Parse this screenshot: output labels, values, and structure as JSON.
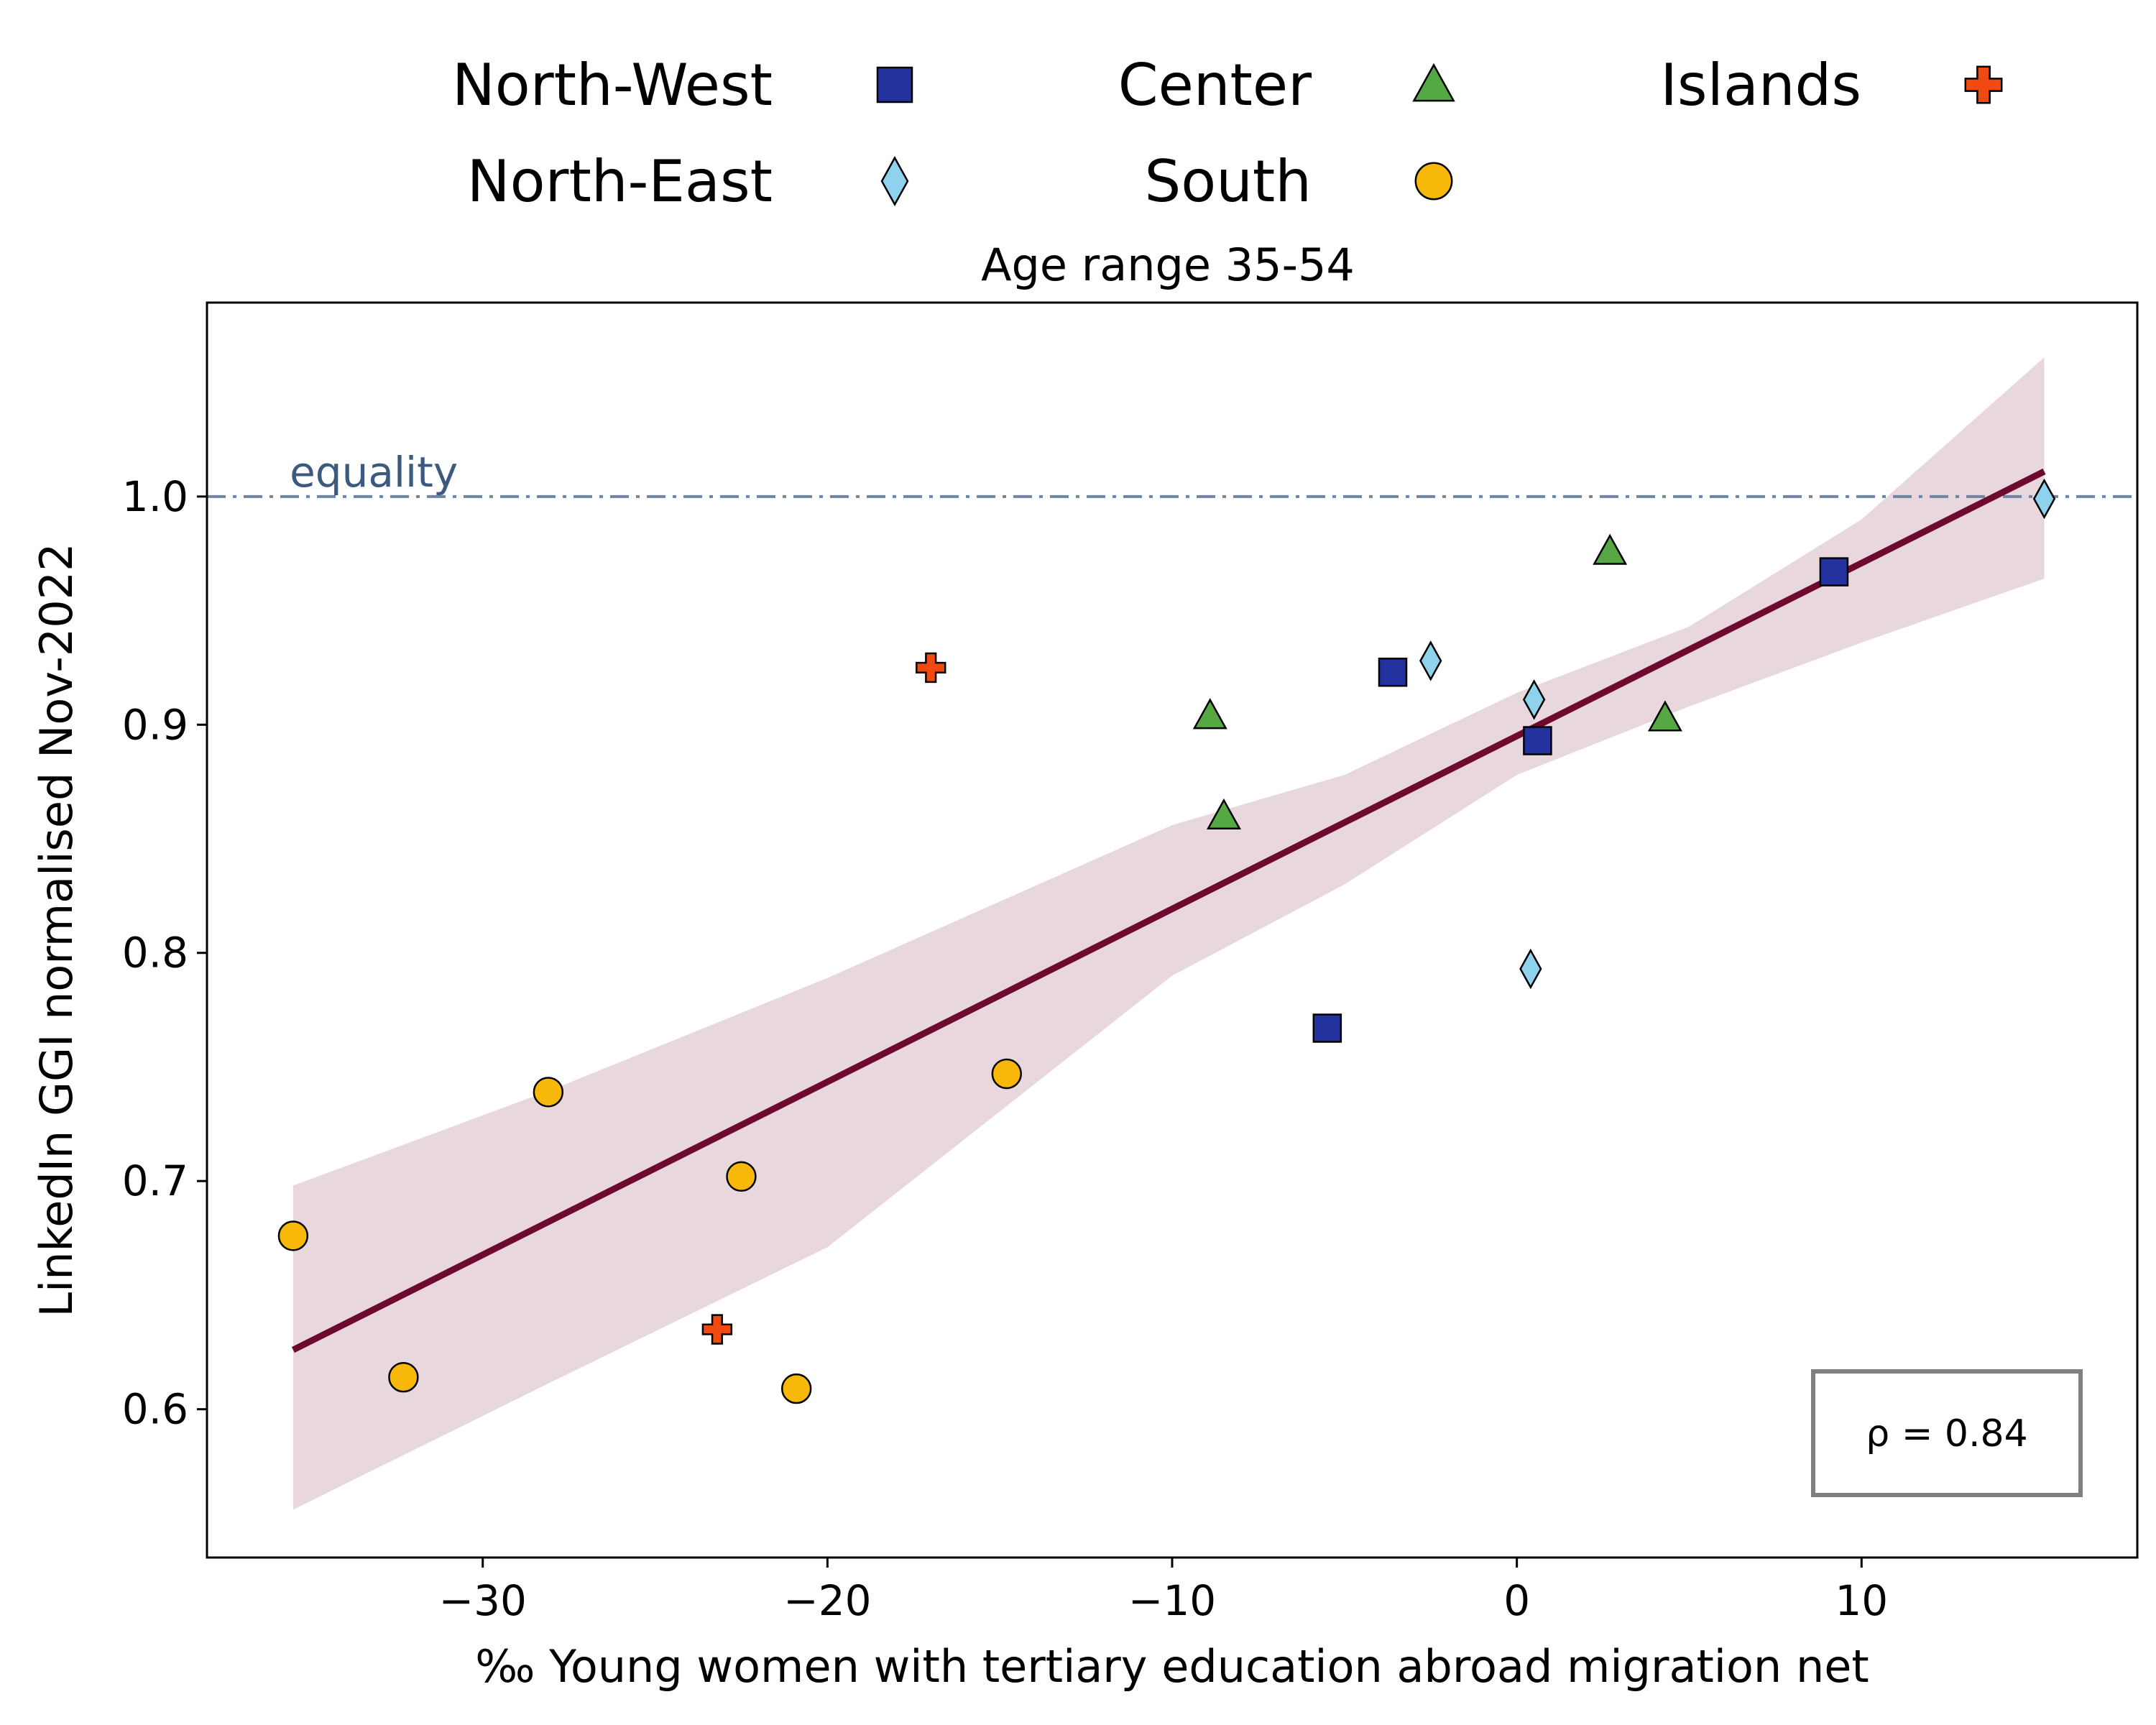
{
  "chart_data": {
    "type": "scatter",
    "title": "Age range 35-54",
    "xlabel": "‰ Young women with tertiary education abroad migration net",
    "ylabel": "LinkedIn GGI normalised Nov-2022",
    "xlim": [
      -38,
      18
    ],
    "ylim": [
      0.535,
      1.085
    ],
    "xticks": [
      -30,
      -20,
      -10,
      0,
      10
    ],
    "xtick_labels": [
      "−30",
      "−20",
      "−10",
      "0",
      "10"
    ],
    "yticks": [
      0.6,
      0.7,
      0.8,
      0.9,
      1.0
    ],
    "ytick_labels": [
      "0.6",
      "0.7",
      "0.8",
      "0.9",
      "1.0"
    ],
    "grid": false,
    "legend_placement": "top, above plot",
    "reference_line": {
      "y": 1.0,
      "label": "equality",
      "color": "#6f86a2",
      "style": "dash-dot"
    },
    "annotation": "ρ = 0.84",
    "fit": {
      "color": "#6e0a2f",
      "band_color": "#e9d7de",
      "line": [
        [
          -35.5,
          0.626
        ],
        [
          15.3,
          1.011
        ]
      ],
      "band_upper": [
        [
          -35.5,
          0.698
        ],
        [
          -28,
          0.74
        ],
        [
          -20,
          0.789
        ],
        [
          -10,
          0.856
        ],
        [
          -5,
          0.878
        ],
        [
          0,
          0.914
        ],
        [
          5,
          0.943
        ],
        [
          10,
          0.99
        ],
        [
          15.3,
          1.061
        ]
      ],
      "band_lower": [
        [
          -35.5,
          0.556
        ],
        [
          -28,
          0.612
        ],
        [
          -20,
          0.671
        ],
        [
          -10,
          0.79
        ],
        [
          -5,
          0.83
        ],
        [
          0,
          0.878
        ],
        [
          5,
          0.908
        ],
        [
          10,
          0.936
        ],
        [
          15.3,
          0.964
        ]
      ]
    },
    "series": [
      {
        "name": "North-West",
        "marker": "square",
        "color": "#24329f",
        "points": [
          [
            -5.5,
            0.767
          ],
          [
            -3.6,
            0.923
          ],
          [
            0.6,
            0.893
          ],
          [
            9.2,
            0.967
          ]
        ]
      },
      {
        "name": "North-East",
        "marker": "diamond",
        "color": "#8fd2ee",
        "points": [
          [
            -2.5,
            0.928
          ],
          [
            0.5,
            0.911
          ],
          [
            0.4,
            0.793
          ],
          [
            15.3,
            0.999
          ]
        ]
      },
      {
        "name": "Center",
        "marker": "triangle",
        "color": "#55a844",
        "points": [
          [
            -8.9,
            0.904
          ],
          [
            -8.5,
            0.86
          ],
          [
            2.7,
            0.976
          ],
          [
            4.3,
            0.903
          ]
        ]
      },
      {
        "name": "South",
        "marker": "circle",
        "color": "#f8b80a",
        "points": [
          [
            -35.5,
            0.676
          ],
          [
            -32.3,
            0.614
          ],
          [
            -28.1,
            0.739
          ],
          [
            -22.5,
            0.702
          ],
          [
            -20.9,
            0.609
          ],
          [
            -14.8,
            0.747
          ]
        ]
      },
      {
        "name": "Islands",
        "marker": "plus",
        "color": "#f04a12",
        "points": [
          [
            -17.0,
            0.925
          ],
          [
            -23.2,
            0.635
          ]
        ]
      }
    ]
  }
}
